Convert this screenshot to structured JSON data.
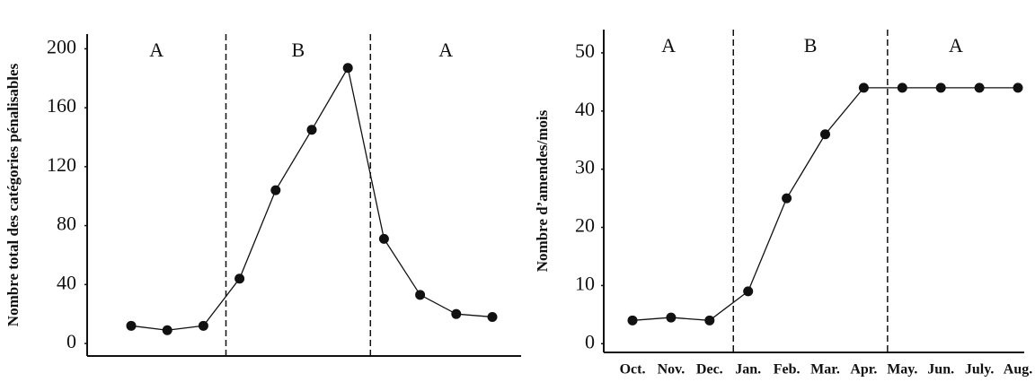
{
  "chart_data": [
    {
      "type": "line",
      "y_label": "Nombre total des catégories pénalisables",
      "categories": [
        null,
        null,
        null,
        null,
        null,
        null,
        null,
        null,
        null,
        null,
        null
      ],
      "values": [
        12,
        9,
        12,
        44,
        104,
        145,
        187,
        71,
        33,
        20,
        18
      ],
      "region_labels": [
        "A",
        "B",
        "A"
      ],
      "color": "#111",
      "ylim": [
        -8.5,
        210
      ],
      "yticks": [
        0,
        40,
        80,
        120,
        160,
        200
      ]
    },
    {
      "type": "line",
      "y_label": "Nombre d’amendes/mois",
      "categories": [
        "Oct.",
        "Nov.",
        "Dec.",
        "Jan.",
        "Feb.",
        "Mar.",
        "Apr.",
        "May.",
        "Jun.",
        "July.",
        "Aug."
      ],
      "values": [
        4,
        4.5,
        4,
        9,
        25,
        36,
        44,
        44,
        44,
        44,
        44
      ],
      "region_labels": [
        "A",
        "B",
        "A"
      ],
      "color": "#111",
      "ylim": [
        -1.5,
        54
      ],
      "yticks": [
        0,
        10,
        20,
        30,
        40,
        50
      ]
    }
  ]
}
